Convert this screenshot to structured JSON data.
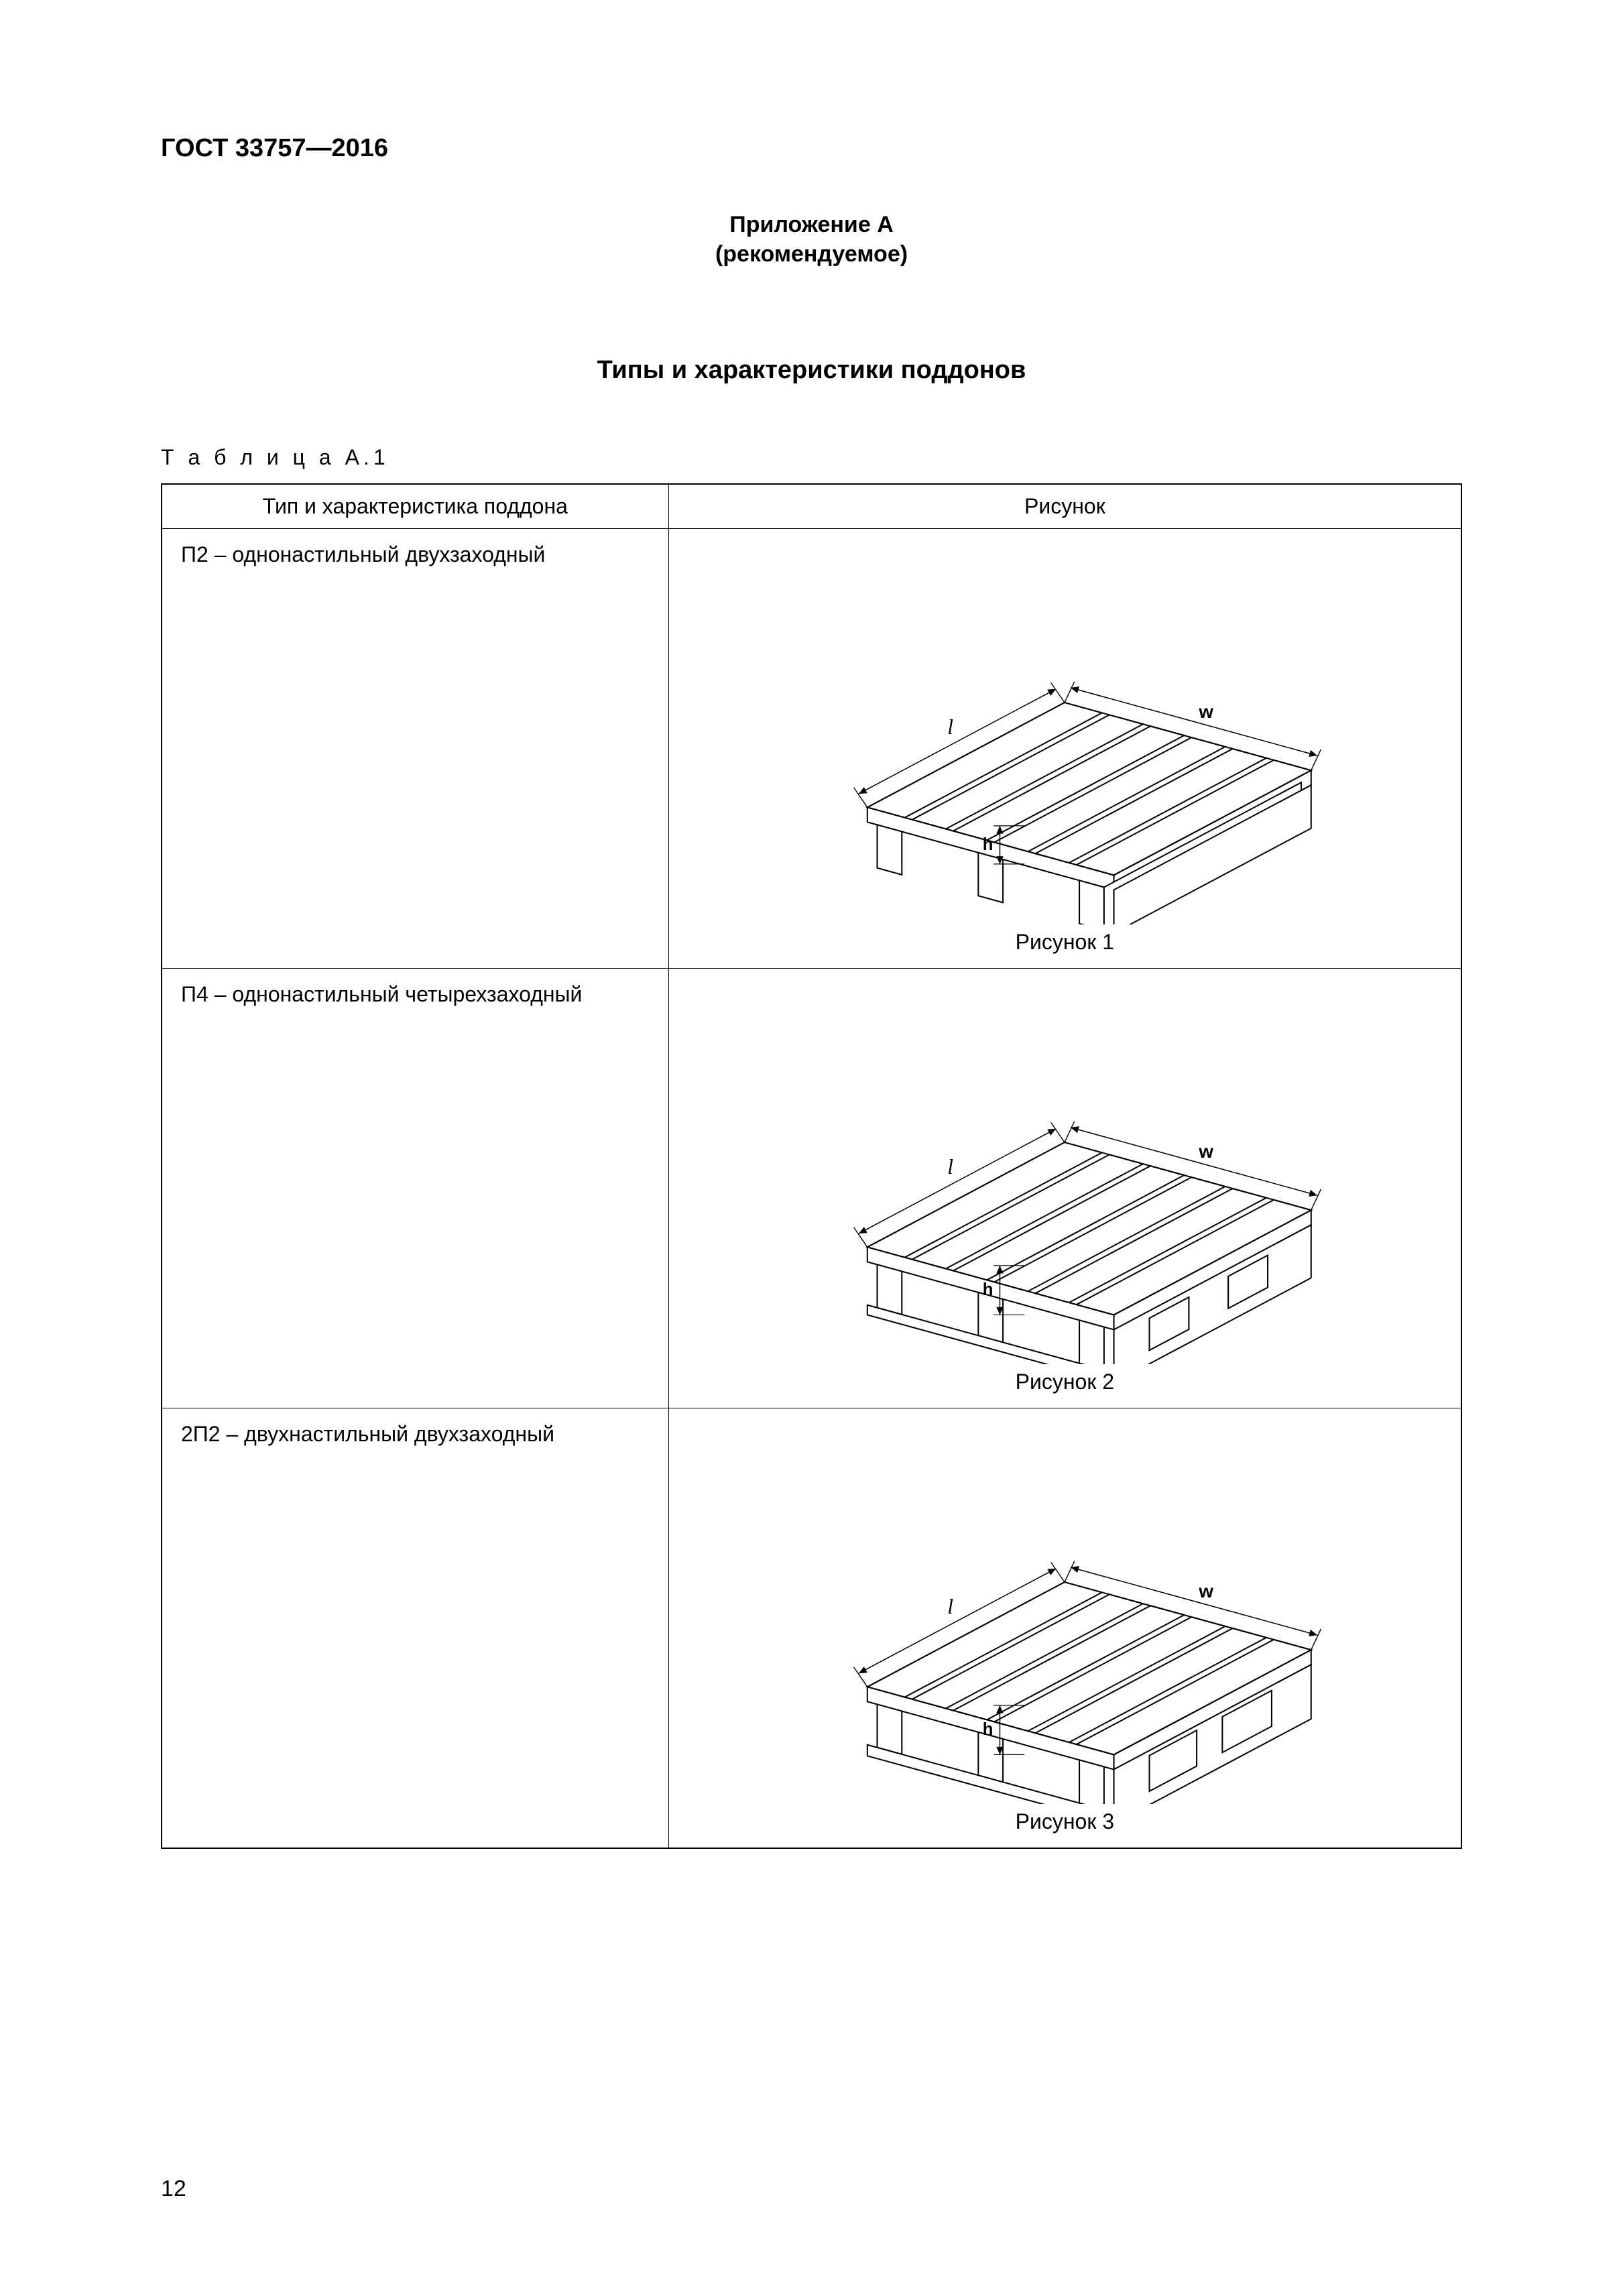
{
  "document": {
    "standard_id": "ГОСТ 33757—2016",
    "appendix_label": "Приложение А",
    "appendix_note": "(рекомендуемое)",
    "section_title": "Типы и характеристики поддонов",
    "table_caption": "Т а б л и ц а  А.1",
    "page_number": "12"
  },
  "table": {
    "headers": {
      "col1": "Тип и характеристика поддона",
      "col2": "Рисунок"
    },
    "rows": [
      {
        "description": "П2 – однонастильный двухзаходный",
        "figure_caption": "Рисунок 1",
        "diagram": {
          "type": "pallet-isometric",
          "variant": "single-deck-2way",
          "dim_labels": {
            "length": "l",
            "width": "w",
            "height": "h"
          },
          "stroke": "#000000",
          "stroke_width": 2.2,
          "fill": "#ffffff"
        }
      },
      {
        "description": "П4 – однонастильный четырехзаходный",
        "figure_caption": "Рисунок 2",
        "diagram": {
          "type": "pallet-isometric",
          "variant": "single-deck-4way",
          "dim_labels": {
            "length": "l",
            "width": "w",
            "height": "h"
          },
          "stroke": "#000000",
          "stroke_width": 2.2,
          "fill": "#ffffff"
        }
      },
      {
        "description": "2П2 – двухнастильный двухзаходный",
        "figure_caption": "Рисунок 3",
        "diagram": {
          "type": "pallet-isometric",
          "variant": "double-deck-2way",
          "dim_labels": {
            "length": "l",
            "width": "w",
            "height": "h"
          },
          "stroke": "#000000",
          "stroke_width": 2.2,
          "fill": "#ffffff"
        }
      }
    ]
  }
}
